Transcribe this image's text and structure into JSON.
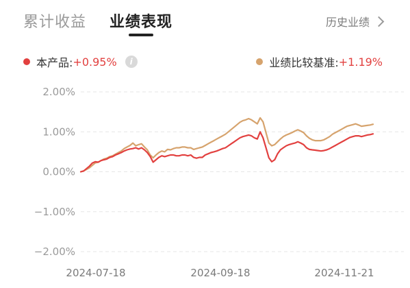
{
  "tabs": [
    {
      "label": "累计收益",
      "active": false
    },
    {
      "label": "业绩表现",
      "active": true
    }
  ],
  "history_link": {
    "label": "历史业绩"
  },
  "legend": {
    "product": {
      "label": "本产品:",
      "value": "+0.95%",
      "color": "#e2403f"
    },
    "benchmark": {
      "label": "业绩比较基准:",
      "value": "+1.19%",
      "color": "#d6a36d"
    },
    "value_color": "#e2403f"
  },
  "chart_data": {
    "type": "line",
    "y_ticks": [
      "2.00%",
      "1.00%",
      "0.00%",
      "−1.00%",
      "−2.00%"
    ],
    "y_values": [
      2,
      1,
      0,
      -1,
      -2
    ],
    "ylim": [
      -2,
      2
    ],
    "x_ticks": [
      "2024-07-18",
      "2024-09-18",
      "2024-11-21"
    ],
    "grid": "horizontal-dashed",
    "series": [
      {
        "name": "本产品",
        "color": "#e2403f",
        "values": [
          0.0,
          0.02,
          0.08,
          0.14,
          0.22,
          0.25,
          0.24,
          0.28,
          0.3,
          0.32,
          0.36,
          0.38,
          0.42,
          0.45,
          0.48,
          0.52,
          0.55,
          0.57,
          0.58,
          0.6,
          0.57,
          0.6,
          0.55,
          0.48,
          0.38,
          0.24,
          0.3,
          0.36,
          0.4,
          0.38,
          0.4,
          0.42,
          0.42,
          0.4,
          0.4,
          0.42,
          0.42,
          0.4,
          0.42,
          0.36,
          0.34,
          0.36,
          0.36,
          0.42,
          0.45,
          0.48,
          0.5,
          0.52,
          0.55,
          0.58,
          0.6,
          0.65,
          0.7,
          0.75,
          0.8,
          0.85,
          0.88,
          0.9,
          0.92,
          0.9,
          0.85,
          0.82,
          1.0,
          0.85,
          0.6,
          0.35,
          0.25,
          0.3,
          0.45,
          0.55,
          0.6,
          0.65,
          0.68,
          0.7,
          0.72,
          0.75,
          0.72,
          0.68,
          0.6,
          0.56,
          0.55,
          0.54,
          0.53,
          0.52,
          0.53,
          0.55,
          0.58,
          0.62,
          0.66,
          0.7,
          0.74,
          0.78,
          0.82,
          0.86,
          0.88,
          0.9,
          0.9,
          0.88,
          0.9,
          0.92,
          0.93,
          0.95
        ]
      },
      {
        "name": "业绩比较基准",
        "color": "#d6a36d",
        "values": [
          0.0,
          0.02,
          0.06,
          0.1,
          0.16,
          0.22,
          0.24,
          0.28,
          0.32,
          0.34,
          0.38,
          0.4,
          0.44,
          0.48,
          0.52,
          0.58,
          0.62,
          0.66,
          0.72,
          0.65,
          0.68,
          0.7,
          0.62,
          0.55,
          0.42,
          0.35,
          0.42,
          0.48,
          0.52,
          0.5,
          0.56,
          0.55,
          0.58,
          0.6,
          0.6,
          0.62,
          0.62,
          0.6,
          0.6,
          0.56,
          0.58,
          0.6,
          0.62,
          0.66,
          0.7,
          0.74,
          0.78,
          0.82,
          0.86,
          0.9,
          0.94,
          1.0,
          1.06,
          1.12,
          1.18,
          1.24,
          1.28,
          1.3,
          1.33,
          1.3,
          1.25,
          1.2,
          1.35,
          1.25,
          0.98,
          0.72,
          0.65,
          0.68,
          0.75,
          0.82,
          0.88,
          0.92,
          0.95,
          0.98,
          1.02,
          1.05,
          1.02,
          0.98,
          0.9,
          0.84,
          0.8,
          0.78,
          0.78,
          0.78,
          0.8,
          0.84,
          0.88,
          0.94,
          0.98,
          1.02,
          1.06,
          1.1,
          1.14,
          1.16,
          1.18,
          1.2,
          1.17,
          1.14,
          1.15,
          1.16,
          1.17,
          1.19
        ]
      }
    ]
  }
}
